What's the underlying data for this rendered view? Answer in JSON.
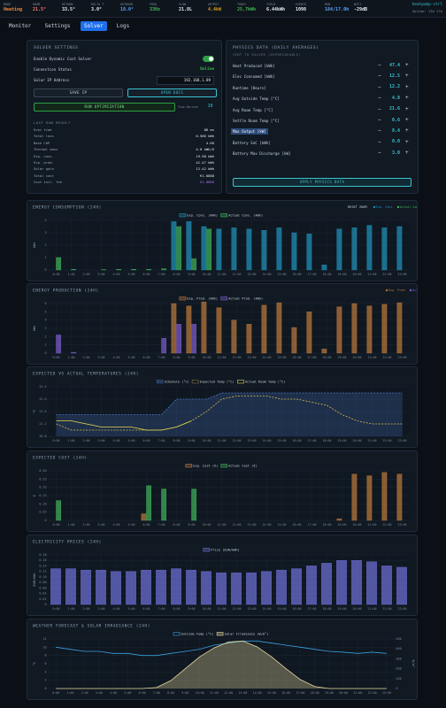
{
  "header": {
    "stats": [
      {
        "label": "MODE",
        "value": "Heating",
        "color": "#f0883e"
      },
      {
        "label": "ROOM",
        "value": "21.5°",
        "color": "#ff7b72"
      },
      {
        "label": "RETURN",
        "value": "33.5°",
        "color": "#e6edf3"
      },
      {
        "label": "DELTA T",
        "value": "3.0°",
        "color": "#e6edf3"
      },
      {
        "label": "OUTDOOR",
        "value": "18.0°",
        "color": "#58a6ff"
      },
      {
        "label": "FREQ",
        "value": "33Hz",
        "color": "#3fb950"
      },
      {
        "label": "FLOW",
        "value": "21.8L",
        "color": "#e6edf3"
      },
      {
        "label": "OUTPUT",
        "value": "4.4kW",
        "color": "#d29922"
      },
      {
        "label": "TODAY",
        "value": "25.7kWh",
        "color": "#3fb950"
      },
      {
        "label": "YIELD",
        "value": "6.44kWh",
        "color": "#e6edf3"
      },
      {
        "label": "EVENTS",
        "value": "1098",
        "color": "#e6edf3"
      },
      {
        "label": "RUN",
        "value": "184/17.0h",
        "color": "#58a6ff"
      },
      {
        "label": "WIFI",
        "value": "-29dB",
        "color": "#e6edf3"
      }
    ],
    "host": "heatpump-ctrl",
    "uptime": "Uptime: 13d 17m"
  },
  "nav": {
    "tabs": [
      "Monitor",
      "Settings",
      "Solver",
      "Logs"
    ],
    "active": 2
  },
  "solver": {
    "title": "SOLVER SETTINGS",
    "enable_label": "Enable Dynamic Cost Solver",
    "enabled": true,
    "status_label": "Connection Status",
    "status": "Online",
    "ip_label": "Solar IP Address",
    "ip": "192.168.1.89",
    "save_button": "SAVE IP",
    "docs_button": "OPEN DOCS",
    "run_button": "RUN OPTIMIZATION",
    "horizon_label": "Time Horizon",
    "horizon": "10",
    "result_title": "LAST RUN RESULT",
    "results": [
      {
        "label": "Exec time",
        "value": "86 ms"
      },
      {
        "label": "Total loss",
        "value": "0.586 kWh"
      },
      {
        "label": "Base COP",
        "value": "4.66"
      },
      {
        "label": "Thermal mass",
        "value": "4.0 kWh/K"
      },
      {
        "label": "Exp. cons.",
        "value": "19.98 kWh"
      },
      {
        "label": "Exp. prod.",
        "value": "41.47 kWh"
      },
      {
        "label": "Solar gain",
        "value": "12.42 kWh"
      },
      {
        "label": "Total cost",
        "value": "€1.0888"
      },
      {
        "label": "Cost incl. fee",
        "value": "€2.0888"
      }
    ]
  },
  "physics": {
    "title": "PHYSICS DATA (DAILY AVERAGES)",
    "subtitle": "SENT TO SOLVER (OVERRIDEABLE)",
    "minus": "−",
    "plus": "+",
    "highlight": 6,
    "rows": [
      {
        "label": "Heat Produced [kWh]",
        "value": "47.4"
      },
      {
        "label": "Elec Consumed [kWh]",
        "value": "12.5"
      },
      {
        "label": "Runtime [Hours]",
        "value": "12.2"
      },
      {
        "label": "Avg Outside Temp [°C]",
        "value": "4.8"
      },
      {
        "label": "Avg Room Temp [°C]",
        "value": "21.6"
      },
      {
        "label": "Settle Room Temp [°C]",
        "value": "0.6"
      },
      {
        "label": "Max Output [kW]",
        "value": "8.4"
      },
      {
        "label": "Battery SoC [kWh]",
        "value": "0.0"
      },
      {
        "label": "Battery Max Discharge [kW]",
        "value": "3.0"
      }
    ],
    "apply_button": "APPLY PHYSICS DATA"
  },
  "chart_data": [
    {
      "type": "bar",
      "title": "ENERGY CONSUMPTION (24H)",
      "reset_button": "RESET ZOOM",
      "toggles": [
        "Exp. Cons.",
        "Actual Cons."
      ],
      "ylabel": "kWh",
      "categories": [
        "0:00",
        "1:00",
        "2:00",
        "3:00",
        "4:00",
        "5:00",
        "6:00",
        "7:00",
        "8:00",
        "9:00",
        "10:00",
        "11:00",
        "12:00",
        "13:00",
        "14:00",
        "15:00",
        "16:00",
        "17:00",
        "18:00",
        "19:00",
        "20:00",
        "21:00",
        "22:00",
        "23:00"
      ],
      "series": [
        {
          "name": "Exp. Cons. (kWh)",
          "color": "#1f8fb8",
          "values": [
            0,
            0,
            0,
            0,
            0,
            0,
            0,
            0,
            3.9,
            3.9,
            3.5,
            3.3,
            3.4,
            3.3,
            3.2,
            3.4,
            3.0,
            2.9,
            0.4,
            3.3,
            3.4,
            3.6,
            3.4,
            3.5
          ]
        },
        {
          "name": "Actual Cons. (kWh)",
          "color": "#3fae5a",
          "values": [
            1.0,
            0.05,
            0,
            0.03,
            0.05,
            0.05,
            0.05,
            0.1,
            3.5,
            0.9,
            3.3,
            null,
            null,
            null,
            null,
            null,
            null,
            null,
            null,
            null,
            null,
            null,
            null,
            null
          ]
        }
      ],
      "ylim": [
        0,
        4
      ],
      "yticks": [
        0,
        1,
        2,
        3,
        4
      ],
      "grid": true
    },
    {
      "type": "bar",
      "title": "ENERGY PRODUCTION (24H)",
      "toggles": [
        "Exp. Prod.",
        "Actual Prod."
      ],
      "ylabel": "kWh",
      "categories": [
        "0:00",
        "1:00",
        "2:00",
        "3:00",
        "4:00",
        "5:00",
        "6:00",
        "7:00",
        "8:00",
        "9:00",
        "10:00",
        "11:00",
        "12:00",
        "13:00",
        "14:00",
        "15:00",
        "16:00",
        "17:00",
        "18:00",
        "19:00",
        "20:00",
        "21:00",
        "22:00",
        "23:00"
      ],
      "series": [
        {
          "name": "Exp. Prod. (kWh)",
          "color": "#b8763a",
          "values": [
            0,
            0,
            0,
            0,
            0,
            0,
            0,
            0,
            6.0,
            5.7,
            6.2,
            5.5,
            4.0,
            3.5,
            5.8,
            6.1,
            3.1,
            5.0,
            0.5,
            5.6,
            6.0,
            5.7,
            5.9,
            6.1
          ]
        },
        {
          "name": "Actual Prod. (kWh)",
          "color": "#7a5cc8",
          "values": [
            2.2,
            0.1,
            0,
            0,
            0,
            0,
            0,
            1.8,
            3.5,
            3.5,
            null,
            null,
            null,
            null,
            null,
            null,
            null,
            null,
            null,
            null,
            null,
            null,
            null,
            null
          ]
        }
      ],
      "ylim": [
        0,
        6
      ],
      "yticks": [
        0,
        1,
        2,
        3,
        4,
        5,
        6
      ],
      "grid": true
    },
    {
      "type": "line",
      "title": "EXPECTED VS ACTUAL TEMPERATURES (24H)",
      "ylabel": "°C",
      "categories": [
        "0:00",
        "1:00",
        "2:00",
        "3:00",
        "4:00",
        "5:00",
        "6:00",
        "7:00",
        "8:00",
        "9:00",
        "10:00",
        "11:00",
        "12:00",
        "13:00",
        "14:00",
        "15:00",
        "16:00",
        "17:00",
        "18:00",
        "19:00",
        "20:00",
        "21:00",
        "22:00",
        "23:00"
      ],
      "series": [
        {
          "name": "Schedule (°C)",
          "color": "#4a78c8",
          "dashed": true,
          "fill": true,
          "values": [
            21.5,
            21.5,
            21.5,
            21.5,
            21.5,
            21.5,
            21.5,
            21.5,
            22.0,
            22.0,
            22.0,
            22.2,
            22.2,
            22.2,
            22.2,
            22.2,
            22.2,
            22.2,
            22.2,
            22.2,
            22.2,
            22.2,
            22.2,
            22.2
          ]
        },
        {
          "name": "Expected Temp (°C)",
          "color": "#d9b84a",
          "dashed": true,
          "values": [
            21.2,
            21.0,
            21.0,
            21.0,
            21.0,
            21.0,
            21.0,
            21.0,
            21.1,
            21.3,
            21.6,
            22.0,
            22.1,
            22.1,
            22.1,
            22.0,
            22.0,
            21.9,
            21.8,
            21.5,
            21.3,
            21.2,
            21.2,
            21.2
          ]
        },
        {
          "name": "Actual Room Temp (°C)",
          "color": "#e8d94a",
          "values": [
            21.3,
            21.3,
            21.2,
            21.1,
            21.1,
            21.1,
            21.0,
            21.0,
            21.1,
            21.3,
            null,
            null,
            null,
            null,
            null,
            null,
            null,
            null,
            null,
            null,
            null,
            null,
            null,
            null
          ]
        }
      ],
      "ylim": [
        20.8,
        22.4
      ],
      "yticks": [
        20.8,
        21.2,
        21.6,
        {
          "value": 22,
          "label": "22.0"
        },
        22.4
      ],
      "grid": true
    },
    {
      "type": "bar",
      "title": "EXPECTED COST (24H)",
      "ylabel": "€",
      "categories": [
        "0:00",
        "1:00",
        "2:00",
        "3:00",
        "4:00",
        "5:00",
        "6:00",
        "7:00",
        "8:00",
        "9:00",
        "10:00",
        "11:00",
        "12:00",
        "13:00",
        "14:00",
        "15:00",
        "16:00",
        "17:00",
        "18:00",
        "19:00",
        "20:00",
        "21:00",
        "22:00",
        "23:00"
      ],
      "series": [
        {
          "name": "Exp. Cost (€)",
          "color": "#b8763a",
          "values": [
            0,
            0,
            0,
            0,
            0,
            0,
            0.04,
            0,
            0,
            0,
            0,
            0,
            0,
            0,
            0,
            0,
            0,
            0,
            0,
            0.01,
            0.28,
            0.27,
            0.29,
            0.28
          ]
        },
        {
          "name": "Actual Cost (€)",
          "color": "#3fae5a",
          "values": [
            0.12,
            0,
            0,
            0,
            0,
            0,
            0.21,
            0.19,
            0,
            0.19,
            null,
            null,
            null,
            null,
            null,
            null,
            null,
            null,
            null,
            null,
            null,
            null,
            null,
            null
          ]
        }
      ],
      "ylim": [
        0,
        0.3
      ],
      "yticks": [
        0,
        0.05,
        {
          "value": 0.1,
          "label": "0.10"
        },
        0.15,
        {
          "value": 0.2,
          "label": "0.20"
        },
        0.25,
        {
          "value": 0.3,
          "label": "0.30"
        }
      ],
      "grid": true
    },
    {
      "type": "bar",
      "title": "ELECTRICITY PRICES (24H)",
      "ylabel": "EUR/kWh",
      "categories": [
        "0:00",
        "1:00",
        "2:00",
        "3:00",
        "4:00",
        "5:00",
        "6:00",
        "7:00",
        "8:00",
        "9:00",
        "10:00",
        "11:00",
        "12:00",
        "13:00",
        "14:00",
        "15:00",
        "16:00",
        "17:00",
        "18:00",
        "19:00",
        "20:00",
        "21:00",
        "22:00",
        "23:00"
      ],
      "series": [
        {
          "name": "Price (EUR/kWh)",
          "color": "#6c6fd4",
          "values": [
            0.13,
            0.13,
            0.125,
            0.125,
            0.12,
            0.12,
            0.125,
            0.125,
            0.13,
            0.125,
            0.12,
            0.115,
            0.115,
            0.115,
            0.12,
            0.125,
            0.13,
            0.14,
            0.15,
            0.16,
            0.16,
            0.155,
            0.14,
            0.135
          ]
        }
      ],
      "ylim": [
        0,
        0.18
      ],
      "yticks": [
        0,
        0.02,
        0.04,
        0.06,
        0.08,
        {
          "value": 0.1,
          "label": "0.10"
        },
        0.12,
        0.14,
        0.16,
        0.18
      ],
      "grid": true
    },
    {
      "type": "line",
      "title": "WEATHER FORECAST & SOLAR IRRADIANCE (24H)",
      "ylabel": "°C",
      "y2label": "W/m²",
      "categories": [
        "0:00",
        "1:00",
        "2:00",
        "3:00",
        "4:00",
        "5:00",
        "6:00",
        "7:00",
        "8:00",
        "9:00",
        "10:00",
        "11:00",
        "12:00",
        "13:00",
        "14:00",
        "15:00",
        "16:00",
        "17:00",
        "18:00",
        "19:00",
        "20:00",
        "21:00",
        "22:00",
        "23:00"
      ],
      "series": [
        {
          "name": "Outside Temp (°C)",
          "color": "#3a9fe0",
          "values": [
            10,
            9.5,
            9,
            9,
            8.5,
            8.5,
            8,
            8,
            8.5,
            9,
            9.5,
            10.5,
            11,
            11.5,
            11.5,
            11,
            10.5,
            10,
            9.5,
            9,
            8.8,
            8.5,
            8.8,
            8.5
          ]
        },
        {
          "name": "Solar Irradiance (W/m²)",
          "color": "#e8d9a0",
          "axis": "y2",
          "fill": true,
          "values": [
            0,
            0,
            0,
            0,
            0,
            0,
            0,
            10,
            80,
            200,
            320,
            410,
            470,
            480,
            420,
            320,
            200,
            90,
            20,
            0,
            0,
            0,
            0,
            0
          ]
        }
      ],
      "ylim": [
        0,
        12
      ],
      "yticks": [
        0,
        2,
        4,
        6,
        8,
        10,
        12
      ],
      "y2lim": [
        0,
        500
      ],
      "y2ticks": [
        0,
        100,
        200,
        300,
        400,
        500
      ],
      "grid": true
    }
  ]
}
